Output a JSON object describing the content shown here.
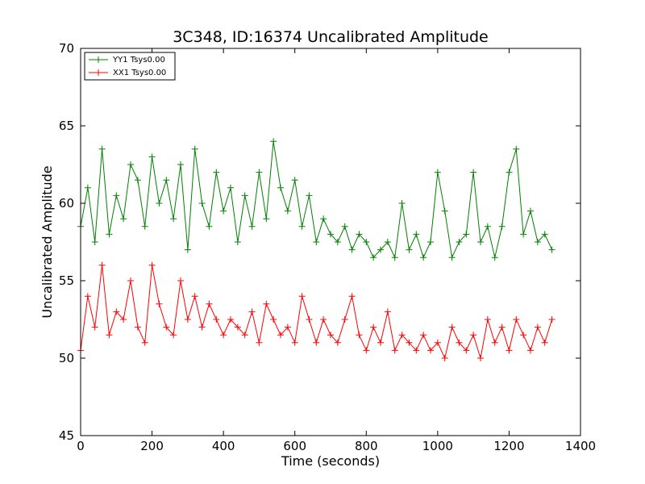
{
  "chart_data": {
    "type": "line",
    "title": "3C348, ID:16374 Uncalibrated Amplitude",
    "xlabel": "Time (seconds)",
    "ylabel": "Uncalibrated Amplitude",
    "xlim": [
      0,
      1400
    ],
    "ylim": [
      45,
      70
    ],
    "xticks": [
      "0",
      "200",
      "400",
      "600",
      "800",
      "1000",
      "1200",
      "1400"
    ],
    "yticks": [
      "45",
      "50",
      "55",
      "60",
      "65",
      "70"
    ],
    "legend_position": "top-left",
    "marker": "plus",
    "series": [
      {
        "name": "YY1 Tsys0.00",
        "color": "#008000",
        "x": [
          0,
          20,
          40,
          60,
          80,
          100,
          120,
          140,
          160,
          180,
          200,
          220,
          240,
          260,
          280,
          300,
          320,
          340,
          360,
          380,
          400,
          420,
          440,
          460,
          480,
          500,
          520,
          540,
          560,
          580,
          600,
          620,
          640,
          660,
          680,
          700,
          720,
          740,
          760,
          780,
          800,
          820,
          840,
          860,
          880,
          900,
          920,
          940,
          960,
          980,
          1000,
          1020,
          1040,
          1060,
          1080,
          1100,
          1120,
          1140,
          1160,
          1180,
          1200,
          1220,
          1240,
          1260,
          1280,
          1300,
          1320
        ],
        "values": [
          58.5,
          61.0,
          57.5,
          63.5,
          58.0,
          60.5,
          59.0,
          62.5,
          61.5,
          58.5,
          63.0,
          60.0,
          61.5,
          59.0,
          62.5,
          57.0,
          63.5,
          60.0,
          58.5,
          62.0,
          59.5,
          61.0,
          57.5,
          60.5,
          58.5,
          62.0,
          59.0,
          64.0,
          61.0,
          59.5,
          61.5,
          58.5,
          60.5,
          57.5,
          59.0,
          58.0,
          57.5,
          58.5,
          57.0,
          58.0,
          57.5,
          56.5,
          57.0,
          57.5,
          56.5,
          60.0,
          57.0,
          58.0,
          56.5,
          57.5,
          62.0,
          59.5,
          56.5,
          57.5,
          58.0,
          62.0,
          57.5,
          58.5,
          56.5,
          58.5,
          62.0,
          63.5,
          58.0,
          59.5,
          57.5,
          58.0,
          57.0
        ]
      },
      {
        "name": "XX1 Tsys0.00",
        "color": "#ff0000",
        "x": [
          0,
          20,
          40,
          60,
          80,
          100,
          120,
          140,
          160,
          180,
          200,
          220,
          240,
          260,
          280,
          300,
          320,
          340,
          360,
          380,
          400,
          420,
          440,
          460,
          480,
          500,
          520,
          540,
          560,
          580,
          600,
          620,
          640,
          660,
          680,
          700,
          720,
          740,
          760,
          780,
          800,
          820,
          840,
          860,
          880,
          900,
          920,
          940,
          960,
          980,
          1000,
          1020,
          1040,
          1060,
          1080,
          1100,
          1120,
          1140,
          1160,
          1180,
          1200,
          1220,
          1240,
          1260,
          1280,
          1300,
          1320
        ],
        "values": [
          50.5,
          54.0,
          52.0,
          56.0,
          51.5,
          53.0,
          52.5,
          55.0,
          52.0,
          51.0,
          56.0,
          53.5,
          52.0,
          51.5,
          55.0,
          52.5,
          54.0,
          52.0,
          53.5,
          52.5,
          51.5,
          52.5,
          52.0,
          51.5,
          53.0,
          51.0,
          53.5,
          52.5,
          51.5,
          52.0,
          51.0,
          54.0,
          52.5,
          51.0,
          52.5,
          51.5,
          51.0,
          52.5,
          54.0,
          51.5,
          50.5,
          52.0,
          51.0,
          53.0,
          50.5,
          51.5,
          51.0,
          50.5,
          51.5,
          50.5,
          51.0,
          50.0,
          52.0,
          51.0,
          50.5,
          51.5,
          50.0,
          52.5,
          51.0,
          52.0,
          50.5,
          52.5,
          51.5,
          50.5,
          52.0,
          51.0,
          52.5
        ]
      }
    ]
  }
}
